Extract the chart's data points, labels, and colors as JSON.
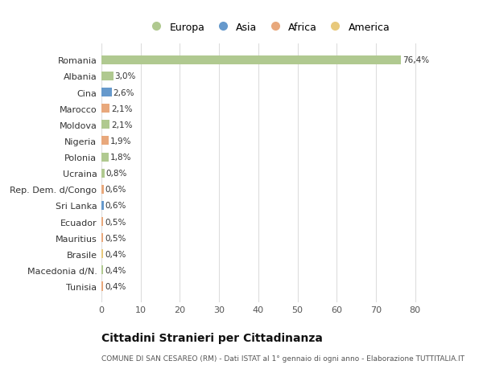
{
  "categories": [
    "Tunisia",
    "Macedonia d/N.",
    "Brasile",
    "Mauritius",
    "Ecuador",
    "Sri Lanka",
    "Rep. Dem. d/Congo",
    "Ucraina",
    "Polonia",
    "Nigeria",
    "Moldova",
    "Marocco",
    "Cina",
    "Albania",
    "Romania"
  ],
  "values": [
    0.4,
    0.4,
    0.4,
    0.5,
    0.5,
    0.6,
    0.6,
    0.8,
    1.8,
    1.9,
    2.1,
    2.1,
    2.6,
    3.0,
    76.4
  ],
  "labels": [
    "0,4%",
    "0,4%",
    "0,4%",
    "0,5%",
    "0,5%",
    "0,6%",
    "0,6%",
    "0,8%",
    "1,8%",
    "1,9%",
    "2,1%",
    "2,1%",
    "2,6%",
    "3,0%",
    "76,4%"
  ],
  "colors": [
    "#e8a87c",
    "#b0c990",
    "#e8c97c",
    "#e8a87c",
    "#e8a87c",
    "#6699cc",
    "#e8a87c",
    "#b0c990",
    "#b0c990",
    "#e8a87c",
    "#b0c990",
    "#e8a87c",
    "#6699cc",
    "#b0c990",
    "#b0c990"
  ],
  "legend_labels": [
    "Europa",
    "Asia",
    "Africa",
    "America"
  ],
  "legend_colors": [
    "#b0c990",
    "#6699cc",
    "#e8a87c",
    "#e8c97c"
  ],
  "title": "Cittadini Stranieri per Cittadinanza",
  "subtitle": "COMUNE DI SAN CESAREO (RM) - Dati ISTAT al 1° gennaio di ogni anno - Elaborazione TUTTITALIA.IT",
  "xlim": [
    0,
    85
  ],
  "xticks": [
    0,
    10,
    20,
    30,
    40,
    50,
    60,
    70,
    80
  ],
  "bg_color": "#ffffff",
  "grid_color": "#dddddd"
}
